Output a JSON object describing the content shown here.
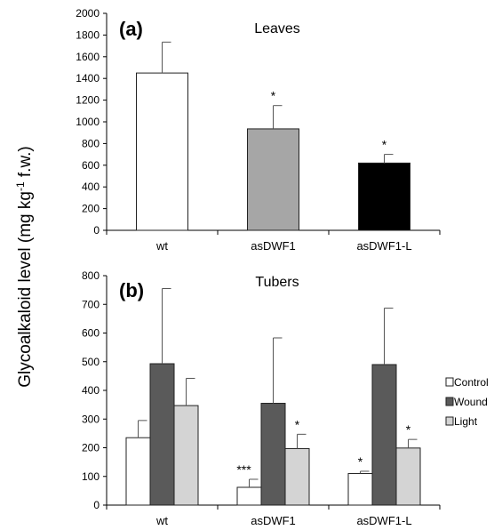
{
  "figure": {
    "y_label": "Glycoalkaloid level (mg kg",
    "y_label_sup": "-1",
    "y_label_tail": " f.w.)"
  },
  "chart_data": [
    {
      "panel": "(a)",
      "type": "bar",
      "title": "Leaves",
      "categories": [
        "wt",
        "asDWF1",
        "asDWF1-L"
      ],
      "values": [
        1450,
        935,
        620
      ],
      "errors": [
        285,
        215,
        80
      ],
      "significance": [
        "",
        "*",
        "*"
      ],
      "colors": [
        "#ffffff",
        "#a6a6a6",
        "#000000"
      ],
      "ylim": [
        0,
        2000
      ],
      "yticks": [
        0,
        200,
        400,
        600,
        800,
        1000,
        1200,
        1400,
        1600,
        1800,
        2000
      ]
    },
    {
      "panel": "(b)",
      "type": "bar",
      "title": "Tubers",
      "categories": [
        "wt",
        "asDWF1",
        "asDWF1-L"
      ],
      "series": [
        {
          "name": "Control",
          "color": "#ffffff",
          "values": [
            235,
            62,
            110
          ],
          "errors": [
            60,
            28,
            8
          ],
          "significance": [
            "",
            "***",
            "*"
          ]
        },
        {
          "name": "Wound",
          "color": "#5a5a5a",
          "values": [
            493,
            355,
            490
          ],
          "errors": [
            262,
            228,
            197
          ],
          "significance": [
            "",
            "",
            ""
          ]
        },
        {
          "name": "Light",
          "color": "#d4d4d4",
          "values": [
            347,
            197,
            199
          ],
          "errors": [
            95,
            50,
            30
          ],
          "significance": [
            "",
            "*",
            "*"
          ]
        }
      ],
      "ylim": [
        0,
        800
      ],
      "yticks": [
        0,
        100,
        200,
        300,
        400,
        500,
        600,
        700,
        800
      ],
      "legend_position": "right"
    }
  ]
}
